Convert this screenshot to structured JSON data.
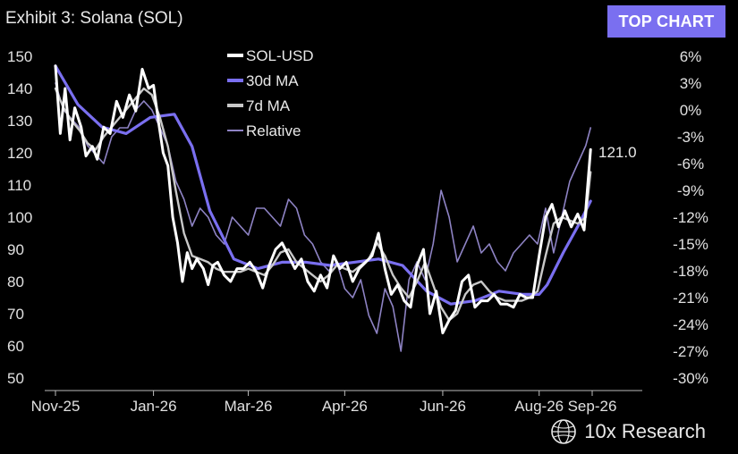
{
  "header": {
    "title": "Exhibit 3: Solana (SOL)",
    "badge_label": "TOP CHART"
  },
  "brand": {
    "name": "10x Research",
    "icon": "globe-icon"
  },
  "colors": {
    "price": "#ffffff",
    "ma30": "#7a6ff0",
    "ma7": "#c8c8c8",
    "relative": "#8e83c4",
    "badge_bg": "#7a6ff0"
  },
  "chart_data": {
    "type": "line",
    "title": "Exhibit 3: Solana (SOL)",
    "x_tick_labels": [
      "Nov-25",
      "Jan-26",
      "Mar-26",
      "Apr-26",
      "Jun-26",
      "Aug-26",
      "Sep-26"
    ],
    "x_tick_dates": [
      "2025-11-01",
      "2026-01-01",
      "2026-03-01",
      "2026-04-30",
      "2026-06-30",
      "2026-08-29",
      "2026-10-01"
    ],
    "ylim_left": [
      50,
      150
    ],
    "y_left_ticks": [
      50,
      60,
      70,
      80,
      90,
      100,
      110,
      120,
      130,
      140,
      150
    ],
    "ylim_right": [
      -30,
      6
    ],
    "y_right_ticks": [
      "6%",
      "3%",
      "0%",
      "-3%",
      "-6%",
      "-9%",
      "-12%",
      "-15%",
      "-18%",
      "-21%",
      "-24%",
      "-27%",
      "-30%"
    ],
    "last_value_label": "121.0",
    "legend_position": "top-center",
    "series": [
      {
        "name": "SOL-USD",
        "axis": "left",
        "color": "#ffffff",
        "x": [
          "2025-11-01",
          "2025-11-04",
          "2025-11-07",
          "2025-11-10",
          "2025-11-13",
          "2025-11-17",
          "2025-11-20",
          "2025-11-24",
          "2025-11-27",
          "2025-12-01",
          "2025-12-05",
          "2025-12-09",
          "2025-12-13",
          "2025-12-17",
          "2025-12-21",
          "2025-12-25",
          "2025-12-29",
          "2026-01-01",
          "2026-01-04",
          "2026-01-07",
          "2026-01-10",
          "2026-01-13",
          "2026-01-16",
          "2026-01-19",
          "2026-01-22",
          "2026-01-25",
          "2026-01-28",
          "2026-02-01",
          "2026-02-04",
          "2026-02-07",
          "2026-02-10",
          "2026-02-14",
          "2026-02-18",
          "2026-02-22",
          "2026-02-26",
          "2026-03-02",
          "2026-03-06",
          "2026-03-10",
          "2026-03-14",
          "2026-03-18",
          "2026-03-22",
          "2026-03-26",
          "2026-03-30",
          "2026-04-03",
          "2026-04-07",
          "2026-04-11",
          "2026-04-15",
          "2026-04-19",
          "2026-04-23",
          "2026-04-27",
          "2026-05-01",
          "2026-05-05",
          "2026-05-09",
          "2026-05-13",
          "2026-05-17",
          "2026-05-21",
          "2026-05-25",
          "2026-05-29",
          "2026-06-02",
          "2026-06-06",
          "2026-06-10",
          "2026-06-14",
          "2026-06-18",
          "2026-06-22",
          "2026-06-26",
          "2026-06-30",
          "2026-07-04",
          "2026-07-08",
          "2026-07-12",
          "2026-07-16",
          "2026-07-20",
          "2026-07-24",
          "2026-07-28",
          "2026-08-01",
          "2026-08-05",
          "2026-08-09",
          "2026-08-13",
          "2026-08-17",
          "2026-08-21",
          "2026-08-25",
          "2026-08-29",
          "2026-09-02",
          "2026-09-06",
          "2026-09-10",
          "2026-09-14",
          "2026-09-18",
          "2026-09-22",
          "2026-09-26",
          "2026-09-30"
        ],
        "y": [
          147,
          126,
          140,
          124,
          134,
          128,
          119,
          122,
          118,
          128,
          126,
          136,
          131,
          138,
          133,
          146,
          140,
          141,
          130,
          120,
          116,
          100,
          92,
          80,
          89,
          84,
          87,
          84,
          79,
          85,
          86,
          82,
          80,
          84,
          84,
          86,
          83,
          78,
          85,
          90,
          92,
          88,
          84,
          87,
          80,
          77,
          82,
          78,
          88,
          84,
          86,
          80,
          84,
          86,
          88,
          95,
          84,
          76,
          79,
          74,
          72,
          85,
          90,
          70,
          77,
          64,
          68,
          71,
          80,
          82,
          72,
          74,
          74,
          76,
          73,
          73,
          72,
          76,
          75,
          75,
          88,
          100,
          104,
          97,
          102,
          97,
          101,
          96,
          121
        ]
      },
      {
        "name": "30d MA",
        "axis": "left",
        "color": "#7a6ff0",
        "x": [
          "2025-11-01",
          "2025-11-15",
          "2025-11-30",
          "2025-12-15",
          "2025-12-30",
          "2026-01-14",
          "2026-01-25",
          "2026-02-05",
          "2026-02-20",
          "2026-03-07",
          "2026-03-22",
          "2026-04-06",
          "2026-04-21",
          "2026-05-06",
          "2026-05-21",
          "2026-06-05",
          "2026-06-20",
          "2026-07-05",
          "2026-07-20",
          "2026-08-04",
          "2026-08-19",
          "2026-08-29",
          "2026-09-03",
          "2026-09-13",
          "2026-09-23",
          "2026-09-30"
        ],
        "y": [
          147,
          135,
          128,
          126,
          131,
          132,
          122,
          102,
          87,
          84,
          86,
          86,
          85,
          86,
          87,
          85,
          77,
          73,
          74,
          77,
          76,
          76,
          79,
          89,
          98,
          105
        ]
      },
      {
        "name": "7d MA",
        "axis": "left",
        "color": "#c8c8c8",
        "x": [
          "2025-11-01",
          "2025-11-06",
          "2025-11-11",
          "2025-11-16",
          "2025-11-21",
          "2025-11-26",
          "2025-12-01",
          "2025-12-06",
          "2025-12-11",
          "2025-12-16",
          "2025-12-21",
          "2025-12-26",
          "2025-12-31",
          "2026-01-05",
          "2026-01-10",
          "2026-01-15",
          "2026-01-20",
          "2026-01-25",
          "2026-01-30",
          "2026-02-04",
          "2026-02-09",
          "2026-02-14",
          "2026-02-19",
          "2026-02-24",
          "2026-03-01",
          "2026-03-06",
          "2026-03-11",
          "2026-03-16",
          "2026-03-21",
          "2026-03-26",
          "2026-03-31",
          "2026-04-05",
          "2026-04-10",
          "2026-04-15",
          "2026-04-20",
          "2026-04-25",
          "2026-04-30",
          "2026-05-05",
          "2026-05-10",
          "2026-05-15",
          "2026-05-20",
          "2026-05-25",
          "2026-05-30",
          "2026-06-04",
          "2026-06-09",
          "2026-06-14",
          "2026-06-19",
          "2026-06-24",
          "2026-06-29",
          "2026-07-04",
          "2026-07-09",
          "2026-07-14",
          "2026-07-19",
          "2026-07-24",
          "2026-07-29",
          "2026-08-03",
          "2026-08-08",
          "2026-08-13",
          "2026-08-18",
          "2026-08-23",
          "2026-08-28",
          "2026-09-02",
          "2026-09-07",
          "2026-09-12",
          "2026-09-17",
          "2026-09-22",
          "2026-09-27",
          "2026-09-30"
        ],
        "y": [
          140,
          134,
          130,
          127,
          123,
          121,
          125,
          128,
          131,
          134,
          137,
          140,
          138,
          131,
          122,
          108,
          95,
          88,
          87,
          86,
          84,
          83,
          83,
          83,
          84,
          83,
          82,
          85,
          89,
          90,
          86,
          84,
          82,
          80,
          82,
          85,
          84,
          83,
          85,
          87,
          92,
          88,
          82,
          78,
          75,
          80,
          86,
          79,
          72,
          68,
          70,
          76,
          79,
          80,
          77,
          75,
          74,
          74,
          74,
          75,
          77,
          88,
          98,
          100,
          99,
          98,
          100,
          114
        ]
      },
      {
        "name": "Relative",
        "axis": "right",
        "color": "#8e83c4",
        "x": [
          "2025-11-01",
          "2025-11-06",
          "2025-11-11",
          "2025-11-16",
          "2025-11-21",
          "2025-11-26",
          "2025-12-01",
          "2025-12-06",
          "2025-12-11",
          "2025-12-16",
          "2025-12-21",
          "2025-12-26",
          "2025-12-31",
          "2026-01-05",
          "2026-01-10",
          "2026-01-15",
          "2026-01-20",
          "2026-01-25",
          "2026-01-30",
          "2026-02-04",
          "2026-02-09",
          "2026-02-14",
          "2026-02-19",
          "2026-02-24",
          "2026-03-01",
          "2026-03-06",
          "2026-03-11",
          "2026-03-16",
          "2026-03-21",
          "2026-03-26",
          "2026-03-31",
          "2026-04-05",
          "2026-04-10",
          "2026-04-15",
          "2026-04-20",
          "2026-04-25",
          "2026-04-30",
          "2026-05-05",
          "2026-05-10",
          "2026-05-15",
          "2026-05-20",
          "2026-05-25",
          "2026-05-30",
          "2026-06-04",
          "2026-06-09",
          "2026-06-14",
          "2026-06-19",
          "2026-06-24",
          "2026-06-29",
          "2026-07-04",
          "2026-07-09",
          "2026-07-14",
          "2026-07-19",
          "2026-07-24",
          "2026-07-29",
          "2026-08-03",
          "2026-08-08",
          "2026-08-13",
          "2026-08-18",
          "2026-08-23",
          "2026-08-28",
          "2026-09-02",
          "2026-09-07",
          "2026-09-12",
          "2026-09-17",
          "2026-09-22",
          "2026-09-27",
          "2026-09-30"
        ],
        "y": [
          3,
          0,
          -1,
          -2,
          -4,
          -5,
          -6,
          -3,
          -2,
          -2,
          0,
          1,
          0,
          -2,
          -4,
          -8,
          -10,
          -13,
          -11,
          -12,
          -14,
          -15,
          -12,
          -13,
          -14,
          -11,
          -11,
          -12,
          -13,
          -10,
          -11,
          -14,
          -15,
          -17,
          -18,
          -17,
          -20,
          -21,
          -19,
          -23,
          -25,
          -20,
          -22,
          -27,
          -19,
          -17,
          -19,
          -15,
          -9,
          -12,
          -17,
          -15,
          -13,
          -16,
          -15,
          -17,
          -18,
          -16,
          -15,
          -14,
          -15,
          -11,
          -16,
          -12,
          -8,
          -6,
          -4,
          -2
        ]
      }
    ]
  }
}
